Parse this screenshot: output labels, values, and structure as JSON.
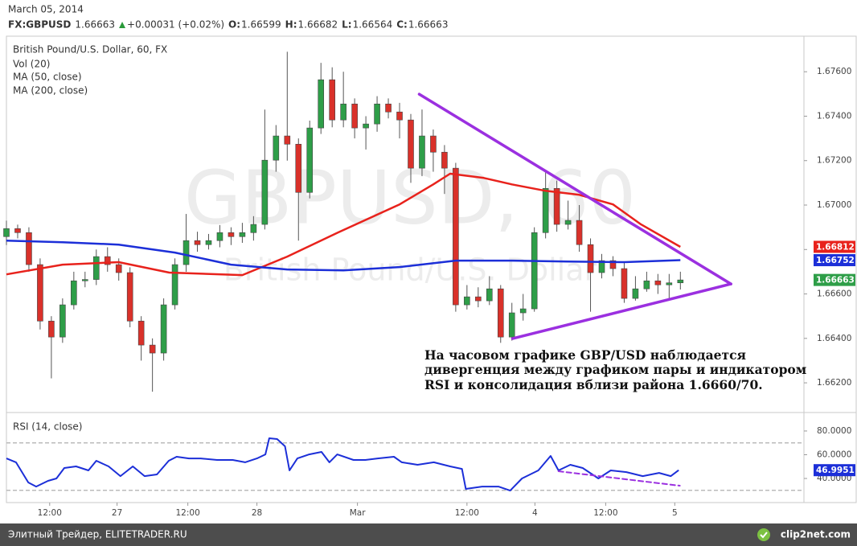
{
  "header": {
    "date": "March 05, 2014",
    "symbol": "FX:GBPUSD",
    "last": 1.66663,
    "change": "+0.00031 (+0.02%)",
    "fields": [
      {
        "label": "O:",
        "value": 1.66599
      },
      {
        "label": "H:",
        "value": 1.66682
      },
      {
        "label": "L:",
        "value": 1.66564
      },
      {
        "label": "C:",
        "value": 1.66663
      }
    ]
  },
  "chart_data": [
    {
      "type": "candlestick",
      "title": "British Pound/U.S. Dollar, 60, FX",
      "volume_label": "Vol (20)",
      "watermark": {
        "title": "GBPUSD, 60",
        "subtitle": "British Pound/U.S. Dollar"
      },
      "up_color": "#2e9e48",
      "down_color": "#d9312a",
      "xlim": [
        0,
        142
      ],
      "ylim": [
        1.6607,
        1.6776
      ],
      "yticks": [
        {
          "value": 1.676,
          "label": "1.67600"
        },
        {
          "value": 1.674,
          "label": "1.67400"
        },
        {
          "value": 1.672,
          "label": "1.67200"
        },
        {
          "value": 1.67,
          "label": "1.67000"
        },
        {
          "value": 1.668,
          "label": "1.66800"
        },
        {
          "value": 1.666,
          "label": "1.66600"
        },
        {
          "value": 1.664,
          "label": "1.66400"
        },
        {
          "value": 1.662,
          "label": "1.66200"
        }
      ],
      "xticks": [
        {
          "value": 7.7,
          "label": "12:00"
        },
        {
          "value": 19.7,
          "label": "27"
        },
        {
          "value": 32.3,
          "label": "12:00"
        },
        {
          "value": 44.6,
          "label": "28"
        },
        {
          "value": 62.5,
          "label": "Mar"
        },
        {
          "value": 82,
          "label": "12:00"
        },
        {
          "value": 94.1,
          "label": "4"
        },
        {
          "value": 106.7,
          "label": "12:00"
        },
        {
          "value": 119,
          "label": "5"
        }
      ],
      "x": [
        0,
        2,
        4,
        6,
        8,
        10,
        12,
        14,
        16,
        18,
        20,
        22,
        24,
        26,
        28,
        30,
        32,
        34,
        36,
        38,
        40,
        42,
        44,
        46,
        48,
        50,
        52,
        54,
        56,
        58,
        60,
        62,
        64,
        66,
        68,
        70,
        72,
        74,
        76,
        78,
        80,
        82,
        84,
        86,
        88,
        90,
        92,
        94,
        96,
        98,
        100,
        102,
        104,
        106,
        108,
        110,
        112,
        114,
        116,
        118,
        120
      ],
      "open": [
        1.66858,
        1.66894,
        1.66876,
        1.66732,
        1.66478,
        1.66406,
        1.66551,
        1.66659,
        1.66665,
        1.66768,
        1.66732,
        1.66696,
        1.66478,
        1.6637,
        1.66334,
        1.66551,
        1.66732,
        1.6684,
        1.66822,
        1.6684,
        1.66876,
        1.66858,
        1.66876,
        1.66913,
        1.67202,
        1.67311,
        1.67274,
        1.67057,
        1.67347,
        1.67564,
        1.67383,
        1.67455,
        1.67347,
        1.67365,
        1.67455,
        1.67419,
        1.67383,
        1.67166,
        1.67311,
        1.67238,
        1.67166,
        1.66551,
        1.66587,
        1.66569,
        1.66623,
        1.66406,
        1.66515,
        1.66533,
        1.66876,
        1.67075,
        1.66913,
        1.66931,
        1.66822,
        1.66696,
        1.6675,
        1.66714,
        1.6658,
        1.66623,
        1.66659,
        1.66641,
        1.6665
      ],
      "high": [
        1.6693,
        1.66912,
        1.669,
        1.6676,
        1.665,
        1.6658,
        1.667,
        1.667,
        1.668,
        1.6681,
        1.6676,
        1.6672,
        1.665,
        1.664,
        1.6658,
        1.6676,
        1.6696,
        1.6688,
        1.6687,
        1.6691,
        1.669,
        1.6692,
        1.6695,
        1.6743,
        1.6736,
        1.6769,
        1.673,
        1.6738,
        1.6764,
        1.6762,
        1.676,
        1.6748,
        1.674,
        1.6749,
        1.6748,
        1.6746,
        1.6741,
        1.6743,
        1.6734,
        1.6727,
        1.6719,
        1.6664,
        1.6663,
        1.6668,
        1.6664,
        1.6656,
        1.666,
        1.669,
        1.6715,
        1.6711,
        1.6702,
        1.67,
        1.6685,
        1.6678,
        1.6677,
        1.6674,
        1.6668,
        1.667,
        1.6669,
        1.6669,
        1.667
      ],
      "low": [
        1.6682,
        1.6685,
        1.667,
        1.6644,
        1.6622,
        1.6638,
        1.6653,
        1.6663,
        1.6664,
        1.667,
        1.6666,
        1.6645,
        1.663,
        1.6616,
        1.663,
        1.6653,
        1.667,
        1.6679,
        1.668,
        1.6681,
        1.6682,
        1.6683,
        1.6684,
        1.6689,
        1.6715,
        1.672,
        1.6684,
        1.6703,
        1.6732,
        1.6735,
        1.6735,
        1.673,
        1.6725,
        1.6733,
        1.6739,
        1.673,
        1.671,
        1.6713,
        1.6715,
        1.6705,
        1.6652,
        1.6653,
        1.6654,
        1.6655,
        1.6638,
        1.6639,
        1.6648,
        1.6652,
        1.6685,
        1.6688,
        1.6689,
        1.6679,
        1.6652,
        1.6667,
        1.6668,
        1.6656,
        1.6657,
        1.6661,
        1.666,
        1.6658,
        1.6662
      ],
      "close": [
        1.66894,
        1.66876,
        1.66732,
        1.66478,
        1.66406,
        1.66551,
        1.66659,
        1.66665,
        1.66768,
        1.66732,
        1.66696,
        1.66478,
        1.6637,
        1.66334,
        1.66551,
        1.66732,
        1.6684,
        1.66822,
        1.6684,
        1.66876,
        1.66858,
        1.66876,
        1.66913,
        1.67202,
        1.67311,
        1.67274,
        1.67057,
        1.67347,
        1.67564,
        1.67383,
        1.67455,
        1.67347,
        1.67365,
        1.67455,
        1.67419,
        1.67383,
        1.67166,
        1.67311,
        1.67238,
        1.67166,
        1.66551,
        1.66587,
        1.66569,
        1.66623,
        1.66406,
        1.66515,
        1.66533,
        1.66876,
        1.67075,
        1.66913,
        1.66931,
        1.66822,
        1.66696,
        1.6675,
        1.66714,
        1.6658,
        1.66623,
        1.66659,
        1.66641,
        1.6665,
        1.66663
      ],
      "series": [
        {
          "name": "MA (50, close)",
          "color": "#e8221c",
          "x": [
            0,
            10,
            20,
            29,
            42,
            50,
            59,
            70,
            76,
            79,
            85,
            90,
            96,
            102,
            108,
            113,
            120
          ],
          "values": [
            1.66688,
            1.66732,
            1.66743,
            1.66696,
            1.66685,
            1.66768,
            1.66876,
            1.67003,
            1.67093,
            1.67141,
            1.67122,
            1.67093,
            1.67064,
            1.67046,
            1.67003,
            1.66913,
            1.66812
          ]
        },
        {
          "name": "MA (200, close)",
          "color": "#1c2fd8",
          "x": [
            0,
            10,
            20,
            30,
            40,
            50,
            60,
            70,
            80,
            90,
            100,
            110,
            120
          ],
          "values": [
            1.6684,
            1.66833,
            1.66822,
            1.66786,
            1.66732,
            1.6671,
            1.66706,
            1.66721,
            1.6675,
            1.6675,
            1.66746,
            1.66743,
            1.66752
          ]
        }
      ],
      "price_labels": [
        {
          "value": 1.66812,
          "color": "#e8221c"
        },
        {
          "value": 1.66752,
          "color": "#1c2fd8"
        },
        {
          "value": 1.66663,
          "color": "#2e9e48"
        }
      ],
      "trendline_color": "#9b30e0",
      "trendlines": [
        {
          "x": [
            73.5,
            129
          ],
          "y": [
            1.67499,
            1.66645
          ]
        },
        {
          "x": [
            90.1,
            129
          ],
          "y": [
            1.66399,
            1.66645
          ]
        }
      ],
      "annotation": [
        "На часовом графике GBP/USD наблюдается",
        "дивергенция между графиком пары и индикатором",
        "RSI и консолидация вблизи района 1.6660/70."
      ]
    },
    {
      "type": "line",
      "xlim": [
        0,
        142
      ],
      "ylim": [
        19.7,
        94.2
      ],
      "yticks": [
        {
          "value": 80,
          "label": "80.0000"
        },
        {
          "value": 60,
          "label": "60.0000"
        },
        {
          "value": 40,
          "label": "40.0000"
        }
      ],
      "levels": [
        70,
        30
      ],
      "series": [
        {
          "name": "RSI (14, close)",
          "color": "#1c2fd8",
          "x": [
            0,
            1.7,
            3.9,
            5.3,
            7.4,
            8.9,
            10.3,
            12.4,
            14.6,
            16,
            18.2,
            20.3,
            22.5,
            24.6,
            26.8,
            28.9,
            30.3,
            32.5,
            34.6,
            37.5,
            40.3,
            42.5,
            44.6,
            46.1,
            46.8,
            48.2,
            49.6,
            50.4,
            51.8,
            53.9,
            56.1,
            57.5,
            58.9,
            61.8,
            63.9,
            66.1,
            69,
            70.4,
            73.2,
            76.1,
            79,
            81.1,
            81.8,
            84.7,
            87.6,
            89.7,
            91.8,
            94.7,
            96.9,
            98.3,
            100.4,
            102.6,
            105.4,
            107.6,
            110.4,
            113.3,
            116.2,
            118.3,
            119.7
          ],
          "values": [
            56.9,
            53.6,
            36.6,
            33.2,
            38,
            40,
            48.8,
            50.2,
            46.8,
            54.9,
            50.2,
            42,
            50.2,
            42,
            43.4,
            54.9,
            58.3,
            56.9,
            56.9,
            55.6,
            55.6,
            53.6,
            56.9,
            60.3,
            73.9,
            73.2,
            67.1,
            46.8,
            56.9,
            60.3,
            62.4,
            53.6,
            60.3,
            55.6,
            55.6,
            56.9,
            58.3,
            53.6,
            51.5,
            53.6,
            50.2,
            48.1,
            31.2,
            33.2,
            33.2,
            29.8,
            40,
            46.8,
            59,
            46.8,
            51.5,
            48.8,
            40,
            46.8,
            45.4,
            42,
            44.7,
            42,
            46.9951
          ]
        }
      ],
      "last_label": {
        "value": 46.9951,
        "color": "#1c2fd8"
      },
      "trendline_color": "#9b30e0",
      "trendlines": [
        {
          "x": [
            98.3,
            119.9
          ],
          "y": [
            46.1,
            33.9
          ]
        }
      ]
    }
  ],
  "footer": {
    "left": "Элитный Трейдер, ELITETRADER.RU",
    "right": "clip2net.com"
  }
}
